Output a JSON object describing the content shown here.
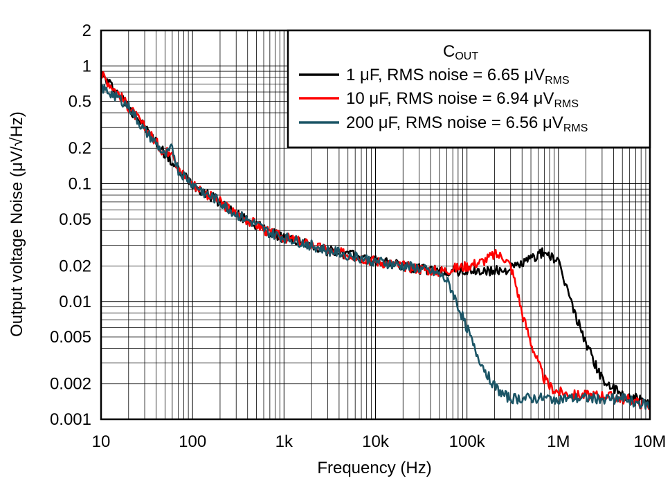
{
  "chart_data": {
    "type": "line",
    "xlabel": "Frequency (Hz)",
    "ylabel": "Output voltage Noise (μV/√Hz)",
    "xscale": "log",
    "yscale": "log",
    "xlim": [
      10,
      10000000
    ],
    "ylim": [
      0.001,
      2
    ],
    "grid": true,
    "legend_position": "top-right",
    "legend_title": "COUT",
    "x_ticks": [
      {
        "value": 10,
        "label": "10"
      },
      {
        "value": 100,
        "label": "100"
      },
      {
        "value": 1000,
        "label": "1k"
      },
      {
        "value": 10000,
        "label": "10k"
      },
      {
        "value": 100000,
        "label": "100k"
      },
      {
        "value": 1000000,
        "label": "1M"
      },
      {
        "value": 10000000,
        "label": "10M"
      }
    ],
    "y_ticks": [
      {
        "value": 0.001,
        "label": "0.001"
      },
      {
        "value": 0.002,
        "label": "0.002"
      },
      {
        "value": 0.005,
        "label": "0.005"
      },
      {
        "value": 0.01,
        "label": "0.01"
      },
      {
        "value": 0.02,
        "label": "0.02"
      },
      {
        "value": 0.05,
        "label": "0.05"
      },
      {
        "value": 0.1,
        "label": "0.1"
      },
      {
        "value": 0.2,
        "label": "0.2"
      },
      {
        "value": 0.5,
        "label": "0.5"
      },
      {
        "value": 1,
        "label": "1"
      },
      {
        "value": 2,
        "label": "2"
      }
    ],
    "series": [
      {
        "name": "1 μF, RMS noise = 6.65 μVRMS",
        "color": "#000000",
        "x": [
          10,
          15,
          20,
          30,
          50,
          70,
          100,
          150,
          200,
          300,
          500,
          700,
          1000,
          2000,
          3000,
          5000,
          10000,
          20000,
          30000,
          50000,
          70000,
          100000,
          150000,
          200000,
          300000,
          400000,
          500000,
          600000,
          700000,
          800000,
          1000000,
          1200000,
          1500000,
          2000000,
          2500000,
          3000000,
          4000000,
          5000000,
          7000000,
          10000000
        ],
        "y": [
          0.85,
          0.6,
          0.45,
          0.3,
          0.18,
          0.13,
          0.1,
          0.08,
          0.07,
          0.055,
          0.045,
          0.038,
          0.035,
          0.03,
          0.027,
          0.025,
          0.022,
          0.02,
          0.019,
          0.018,
          0.018,
          0.018,
          0.018,
          0.018,
          0.019,
          0.021,
          0.023,
          0.025,
          0.026,
          0.025,
          0.021,
          0.014,
          0.008,
          0.0045,
          0.003,
          0.0022,
          0.0018,
          0.0016,
          0.0015,
          0.0013
        ]
      },
      {
        "name": "10 μF, RMS noise = 6.94 μVRMS",
        "color": "#ff0000",
        "x": [
          10,
          15,
          20,
          30,
          50,
          60,
          70,
          100,
          150,
          200,
          300,
          500,
          700,
          1000,
          2000,
          3000,
          5000,
          10000,
          20000,
          30000,
          50000,
          70000,
          100000,
          150000,
          200000,
          250000,
          300000,
          350000,
          400000,
          500000,
          600000,
          700000,
          800000,
          1000000,
          1500000,
          2000000,
          3000000,
          5000000,
          7000000,
          10000000
        ],
        "y": [
          0.85,
          0.6,
          0.45,
          0.3,
          0.18,
          0.2,
          0.13,
          0.1,
          0.08,
          0.07,
          0.055,
          0.045,
          0.038,
          0.035,
          0.03,
          0.027,
          0.025,
          0.022,
          0.02,
          0.019,
          0.018,
          0.019,
          0.02,
          0.022,
          0.025,
          0.024,
          0.02,
          0.013,
          0.008,
          0.0045,
          0.003,
          0.0022,
          0.0019,
          0.0017,
          0.0016,
          0.0016,
          0.0016,
          0.0015,
          0.0014,
          0.0013
        ]
      },
      {
        "name": "200 μF, RMS noise = 6.56 μVRMS",
        "color": "#1b5566",
        "x": [
          10,
          15,
          20,
          30,
          40,
          50,
          60,
          70,
          100,
          150,
          200,
          300,
          500,
          700,
          1000,
          2000,
          3000,
          5000,
          10000,
          20000,
          30000,
          50000,
          60000,
          70000,
          80000,
          100000,
          120000,
          150000,
          200000,
          250000,
          300000,
          400000,
          500000,
          700000,
          1000000,
          2000000,
          3000000,
          5000000,
          7000000,
          10000000
        ],
        "y": [
          0.65,
          0.55,
          0.45,
          0.28,
          0.22,
          0.17,
          0.2,
          0.13,
          0.1,
          0.08,
          0.07,
          0.055,
          0.045,
          0.038,
          0.035,
          0.03,
          0.027,
          0.025,
          0.022,
          0.02,
          0.019,
          0.017,
          0.015,
          0.012,
          0.009,
          0.006,
          0.004,
          0.0028,
          0.0019,
          0.0016,
          0.0015,
          0.0015,
          0.0015,
          0.0015,
          0.0015,
          0.0015,
          0.0015,
          0.0015,
          0.0014,
          0.0013
        ]
      }
    ]
  }
}
